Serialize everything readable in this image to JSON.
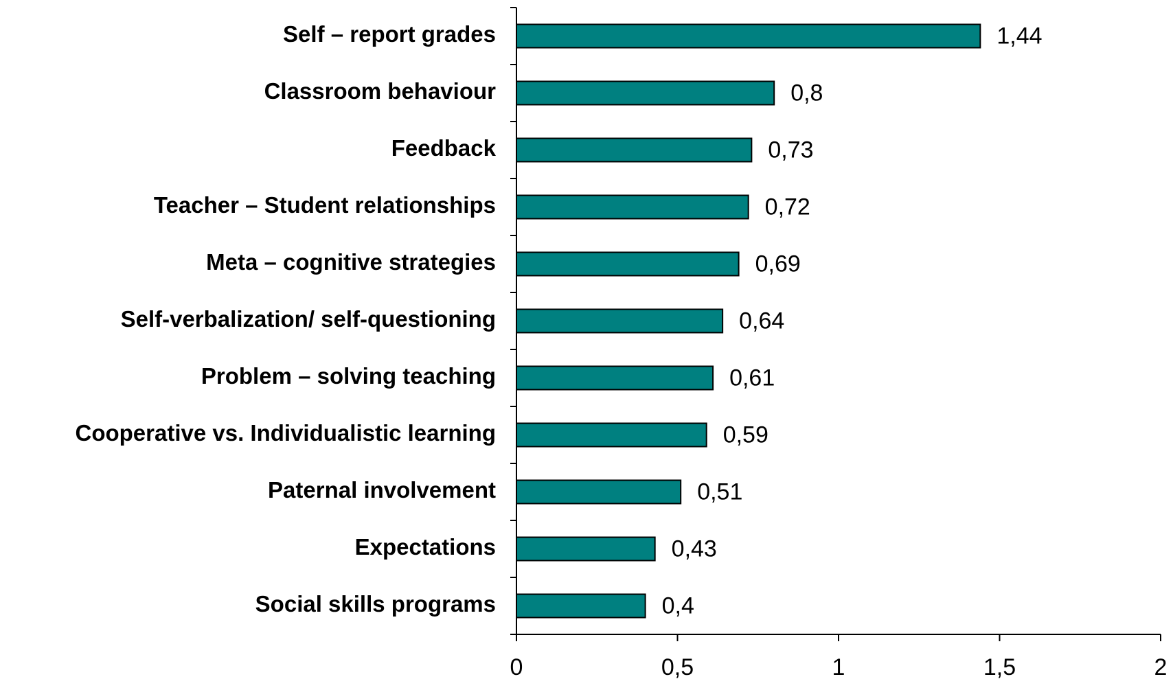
{
  "chart_data": {
    "type": "bar",
    "orientation": "horizontal",
    "categories": [
      "Self – report grades",
      "Classroom behaviour",
      "Feedback",
      "Teacher – Student relationships",
      "Meta – cognitive strategies",
      "Self-verbalization/ self-questioning",
      "Problem – solving teaching",
      "Cooperative vs. Individualistic learning",
      "Paternal involvement",
      "Expectations",
      "Social skills programs"
    ],
    "values": [
      1.44,
      0.8,
      0.73,
      0.72,
      0.69,
      0.64,
      0.61,
      0.59,
      0.51,
      0.43,
      0.4
    ],
    "value_labels": [
      "1,44",
      "0,8",
      "0,73",
      "0,72",
      "0,69",
      "0,64",
      "0,61",
      "0,59",
      "0,51",
      "0,43",
      "0,4"
    ],
    "color": "#008080",
    "xlim": [
      0,
      2
    ],
    "xticks": [
      0,
      {
        "value": 0.5,
        "label": "0,5"
      },
      1,
      {
        "value": 1.5,
        "label": "1,5"
      },
      2
    ],
    "grid": false
  }
}
